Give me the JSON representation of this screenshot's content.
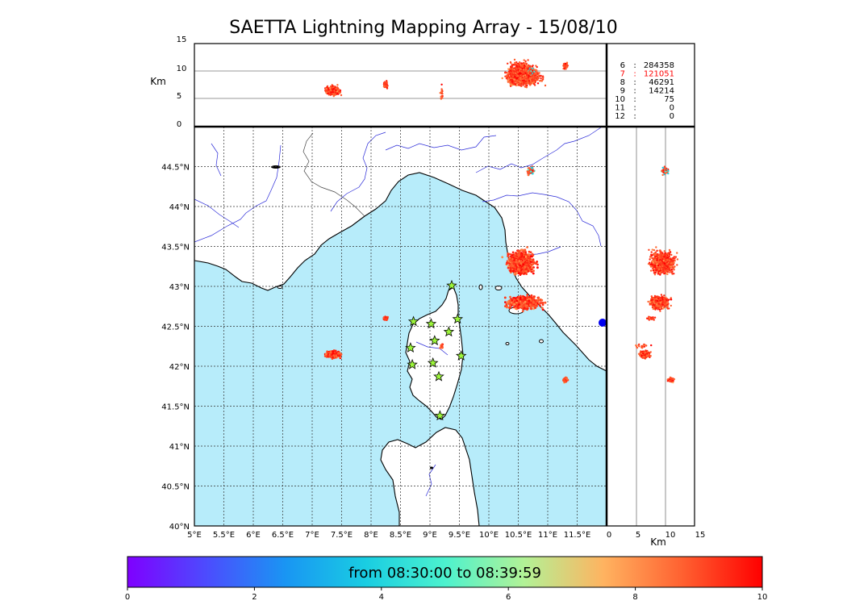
{
  "title": "SAETTA Lightning Mapping Array - 15/08/10",
  "altitude_panel": {
    "ylabel": "Km",
    "yticks": [
      "15",
      "10",
      "5",
      "0"
    ]
  },
  "side_panel": {
    "xlabel": "Km",
    "xticks": [
      "0",
      "5",
      "10",
      "15"
    ]
  },
  "stats": [
    {
      "station": "6",
      "count": "284358",
      "color": "#000000"
    },
    {
      "station": "7",
      "count": "121051",
      "color": "#ff0000"
    },
    {
      "station": "8",
      "count": "46291",
      "color": "#000000"
    },
    {
      "station": "9",
      "count": "14214",
      "color": "#000000"
    },
    {
      "station": "10",
      "count": "75",
      "color": "#000000"
    },
    {
      "station": "11",
      "count": "0",
      "color": "#000000"
    },
    {
      "station": "12",
      "count": "0",
      "color": "#000000"
    }
  ],
  "map": {
    "lon_ticks": [
      "5°E",
      "5.5°E",
      "6°E",
      "6.5°E",
      "7°E",
      "7.5°E",
      "8°E",
      "8.5°E",
      "9°E",
      "9.5°E",
      "10°E",
      "10.5°E",
      "11°E",
      "11.5°E"
    ],
    "lat_ticks": [
      "44.5°N",
      "44°N",
      "43.5°N",
      "43°N",
      "42.5°N",
      "42°N",
      "41.5°N",
      "41°N",
      "40.5°N",
      "40°N"
    ],
    "sea_color": "#b7ecfa",
    "land_color": "#ffffff"
  },
  "colorbar": {
    "label": "from 08:30:00 to 08:39:59",
    "ticks": [
      "0",
      "2",
      "4",
      "6",
      "8",
      "10"
    ]
  },
  "chart_data": {
    "type": "scatter",
    "title": "SAETTA Lightning Mapping Array - 15/08/10",
    "xlabel": "",
    "ylabel": "",
    "xlim": [
      5.0,
      12.0
    ],
    "ylim": [
      40.0,
      45.0
    ],
    "altitude_range_km": [
      0,
      15
    ],
    "time_range_minutes": [
      0,
      10
    ],
    "clusters": [
      {
        "lon": 10.55,
        "lat": 43.3,
        "alt_km": 9.5,
        "time_min": 9
      },
      {
        "lon": 10.6,
        "lat": 42.8,
        "alt_km": 9.0,
        "time_min": 9
      },
      {
        "lon": 7.35,
        "lat": 42.15,
        "alt_km": 6.5,
        "time_min": 9
      },
      {
        "lon": 8.25,
        "lat": 42.6,
        "alt_km": 7.5,
        "time_min": 9
      },
      {
        "lon": 11.3,
        "lat": 41.83,
        "alt_km": 11.0,
        "time_min": 9
      },
      {
        "lon": 10.7,
        "lat": 44.45,
        "alt_km": 10.0,
        "time_min": 4.5
      },
      {
        "lon": 9.2,
        "lat": 42.25,
        "alt_km": 6.0,
        "time_min": 9
      }
    ],
    "stations": [
      {
        "lon": 9.37,
        "lat": 43.01
      },
      {
        "lon": 8.72,
        "lat": 42.56
      },
      {
        "lon": 9.02,
        "lat": 42.53
      },
      {
        "lon": 9.47,
        "lat": 42.59
      },
      {
        "lon": 9.32,
        "lat": 42.43
      },
      {
        "lon": 9.08,
        "lat": 42.32
      },
      {
        "lon": 8.67,
        "lat": 42.23
      },
      {
        "lon": 8.7,
        "lat": 42.02
      },
      {
        "lon": 9.05,
        "lat": 42.04
      },
      {
        "lon": 9.53,
        "lat": 42.13
      },
      {
        "lon": 9.15,
        "lat": 41.87
      },
      {
        "lon": 9.17,
        "lat": 41.38
      }
    ]
  }
}
